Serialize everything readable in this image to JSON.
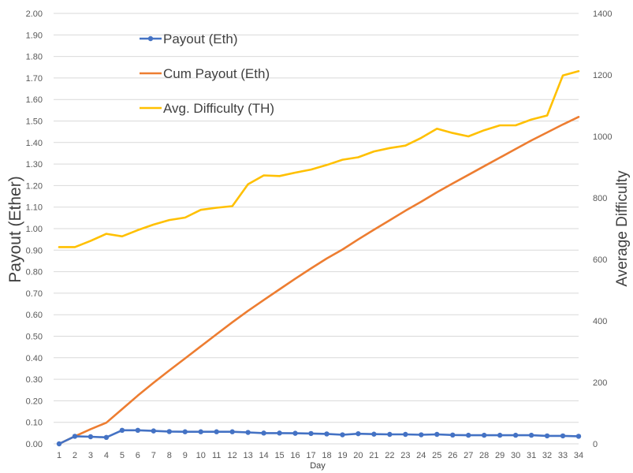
{
  "chart_data": {
    "type": "line",
    "xlabel": "Day",
    "ylabel": "Payout (Ether)",
    "y2label": "Average Difficulty",
    "x": [
      1,
      2,
      3,
      4,
      5,
      6,
      7,
      8,
      9,
      10,
      11,
      12,
      13,
      14,
      15,
      16,
      17,
      18,
      19,
      20,
      21,
      22,
      23,
      24,
      25,
      26,
      27,
      28,
      29,
      30,
      31,
      32,
      33,
      34
    ],
    "ylim": [
      0,
      2.0
    ],
    "y2lim": [
      0,
      1400
    ],
    "yticks": [
      "0.00",
      "0.10",
      "0.20",
      "0.30",
      "0.40",
      "0.50",
      "0.60",
      "0.70",
      "0.80",
      "0.90",
      "1.00",
      "1.10",
      "1.20",
      "1.30",
      "1.40",
      "1.50",
      "1.60",
      "1.70",
      "1.80",
      "1.90",
      "2.00"
    ],
    "y2ticks": [
      "0",
      "200",
      "400",
      "600",
      "800",
      "1000",
      "1200",
      "1400"
    ],
    "legend_position": "top-left",
    "grid": "horizontal",
    "series": [
      {
        "name": "Payout (Eth)",
        "axis": "left",
        "color": "#4472c4",
        "markers": true,
        "values": [
          0.0,
          0.035,
          0.033,
          0.03,
          0.063,
          0.063,
          0.06,
          0.057,
          0.056,
          0.056,
          0.056,
          0.056,
          0.053,
          0.05,
          0.05,
          0.049,
          0.048,
          0.046,
          0.042,
          0.047,
          0.045,
          0.044,
          0.044,
          0.042,
          0.044,
          0.041,
          0.04,
          0.04,
          0.04,
          0.04,
          0.04,
          0.037,
          0.037,
          0.035
        ]
      },
      {
        "name": "Cum Payout (Eth)",
        "axis": "left",
        "color": "#ed7d31",
        "markers": false,
        "values": [
          0.0,
          0.035,
          0.068,
          0.098,
          0.161,
          0.224,
          0.284,
          0.341,
          0.397,
          0.453,
          0.509,
          0.565,
          0.618,
          0.668,
          0.718,
          0.767,
          0.815,
          0.861,
          0.903,
          0.95,
          0.995,
          1.039,
          1.083,
          1.125,
          1.169,
          1.21,
          1.25,
          1.29,
          1.33,
          1.37,
          1.41,
          1.447,
          1.484,
          1.519
        ]
      },
      {
        "name": "Avg. Difficulty (TH)",
        "axis": "right",
        "color": "#ffc000",
        "markers": false,
        "values": [
          640,
          640,
          660,
          683,
          675,
          695,
          713,
          728,
          736,
          761,
          768,
          773,
          844,
          873,
          871,
          882,
          892,
          907,
          924,
          932,
          951,
          962,
          970,
          995,
          1025,
          1011,
          1000,
          1020,
          1036,
          1036,
          1055,
          1068,
          1198,
          1212
        ]
      }
    ]
  }
}
